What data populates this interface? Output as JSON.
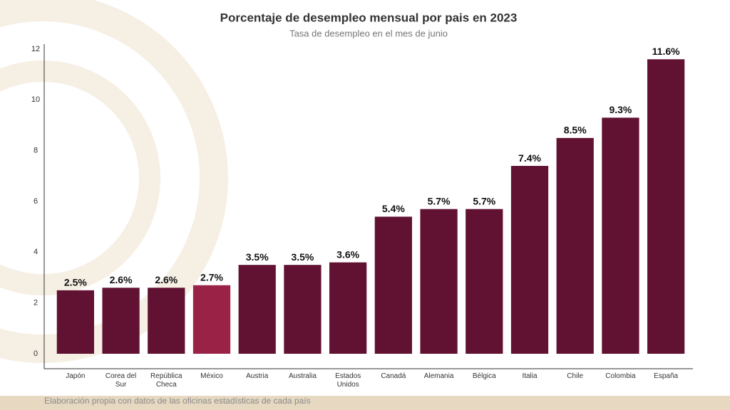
{
  "chart_data": {
    "type": "bar",
    "title": "Porcentaje de desempleo mensual por pais en 2023",
    "subtitle": "Tasa de desempleo en el mes de junio",
    "categories": [
      "Japón",
      "Corea del Sur",
      "República Checa",
      "México",
      "Austria",
      "Australia",
      "Estados Unidos",
      "Canadá",
      "Alemania",
      "Bélgica",
      "Italia",
      "Chile",
      "Colombia",
      "España"
    ],
    "values": [
      2.5,
      2.6,
      2.6,
      2.7,
      3.5,
      3.5,
      3.6,
      5.4,
      5.7,
      5.7,
      7.4,
      8.5,
      9.3,
      11.6
    ],
    "value_labels": [
      "2.5%",
      "2.6%",
      "2.6%",
      "2.7%",
      "3.5%",
      "3.5%",
      "3.6%",
      "5.4%",
      "5.7%",
      "5.7%",
      "7.4%",
      "8.5%",
      "9.3%",
      "11.6%"
    ],
    "colors": [
      "#611232",
      "#611232",
      "#611232",
      "#9b2247",
      "#611232",
      "#611232",
      "#611232",
      "#611232",
      "#611232",
      "#611232",
      "#611232",
      "#611232",
      "#611232",
      "#611232"
    ],
    "ylim": [
      0,
      12
    ],
    "yticks": [
      0,
      2,
      4,
      6,
      8,
      10,
      12
    ],
    "grid": false
  },
  "source": "Elaboración propia con datos de las oficinas estadísticas de cada país"
}
